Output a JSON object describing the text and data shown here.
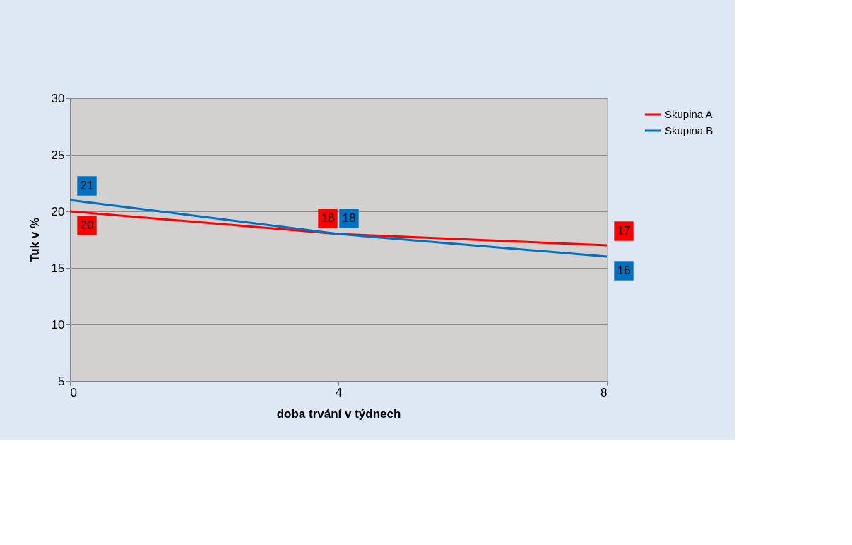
{
  "chart_data": {
    "type": "line",
    "xlabel": "doba trvání v týdnech",
    "ylabel": "Tuk v %",
    "x": [
      0,
      4,
      8
    ],
    "xlim": [
      0,
      8
    ],
    "xticks": [
      0,
      4,
      8
    ],
    "ylim": [
      5,
      30
    ],
    "yticks": [
      5,
      10,
      15,
      20,
      25,
      30
    ],
    "series": [
      {
        "name": "Skupina A",
        "color": "#ff0000",
        "values": [
          20,
          18,
          17
        ]
      },
      {
        "name": "Skupina B",
        "color": "#0070c0",
        "values": [
          21,
          18,
          16
        ]
      }
    ],
    "data_labels": true,
    "grid": "y",
    "legend": "right",
    "marker": "none",
    "line_style": "solid"
  }
}
